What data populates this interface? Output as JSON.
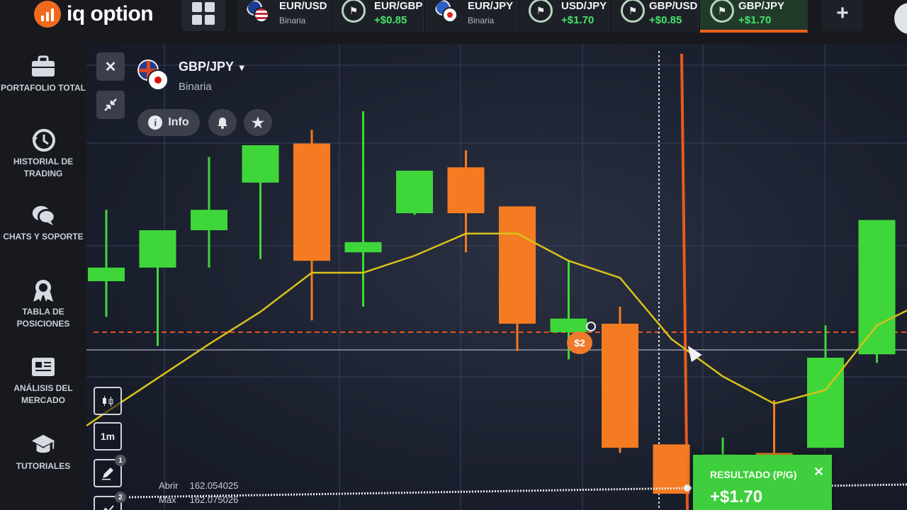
{
  "app": {
    "logo_text": "iq option"
  },
  "tabs": [
    {
      "name": "EUR/USD",
      "sub": "Binaria",
      "kind": "us"
    },
    {
      "name": "EUR/GBP",
      "sub": "+$0.85",
      "kind": "profit"
    },
    {
      "name": "EUR/JPY",
      "sub": "Binaria",
      "kind": "tp"
    },
    {
      "name": "USD/JPY",
      "sub": "+$1.70",
      "kind": "profit"
    },
    {
      "name": "GBP/USD",
      "sub": "+$0.85",
      "kind": "profit"
    },
    {
      "name": "GBP/JPY",
      "sub": "+$1.70",
      "kind": "profit-active"
    }
  ],
  "add_tab_label": "+",
  "sidebar": {
    "items": [
      {
        "label": "Portafolio total",
        "icon": "briefcase-icon"
      },
      {
        "label": "Historial de trading",
        "icon": "history-icon"
      },
      {
        "label": "Chats y soporte",
        "icon": "chat-icon"
      },
      {
        "label": "Tabla de posiciones",
        "icon": "medal-icon"
      },
      {
        "label": "Análisis del mercado",
        "icon": "newspaper-icon"
      },
      {
        "label": "Tutoriales",
        "icon": "graduation-cap-icon"
      }
    ]
  },
  "asset": {
    "name": "GBP/JPY",
    "type": "Binaria"
  },
  "controls": {
    "close": "✕",
    "info_label": "Info"
  },
  "tools": {
    "timeframe": "1m",
    "badge_1": "1",
    "badge_2": "2"
  },
  "ohlc": {
    "open_label": "Abrir",
    "open_value": "162.054025",
    "max_label": "Máx",
    "max_value": "162.075026"
  },
  "trade": {
    "amount": "$2"
  },
  "result": {
    "title": "RESULTADO (P/G)",
    "value": "+$1.70",
    "close": "✕"
  },
  "colors": {
    "up": "#3fd63a",
    "down": "#f47b22",
    "ma": "#d8c21a",
    "strike": "#e8541c",
    "accent": "#f06a1e"
  },
  "chart_data": {
    "type": "candlestick",
    "timeframe": "1m",
    "candles": [
      {
        "dir": "up",
        "o": 0.3,
        "c": 0.38,
        "h": 0.72,
        "l": 0.09
      },
      {
        "dir": "up",
        "o": 0.38,
        "c": 0.6,
        "h": 0.6,
        "l": -0.08
      },
      {
        "dir": "up",
        "o": 0.6,
        "c": 0.72,
        "h": 1.03,
        "l": 0.38
      },
      {
        "dir": "up",
        "o": 0.88,
        "c": 1.1,
        "h": 1.1,
        "l": 0.43
      },
      {
        "dir": "down",
        "o": 1.11,
        "c": 0.42,
        "h": 1.19,
        "l": 0.07
      },
      {
        "dir": "up",
        "o": 0.47,
        "c": 0.53,
        "h": 1.3,
        "l": 0.15
      },
      {
        "dir": "up",
        "o": 0.7,
        "c": 0.95,
        "h": 0.95,
        "l": 0.69
      },
      {
        "dir": "down",
        "o": 0.97,
        "c": 0.7,
        "h": 1.07,
        "l": 0.47
      },
      {
        "dir": "down",
        "o": 0.74,
        "c": 0.05,
        "h": 0.74,
        "l": -0.11
      },
      {
        "dir": "up",
        "o": 0.0,
        "c": 0.08,
        "h": 0.42,
        "l": -0.16
      },
      {
        "dir": "down",
        "o": 0.05,
        "c": -0.68,
        "h": 0.15,
        "l": -0.71
      },
      {
        "dir": "down",
        "o": -0.66,
        "c": -0.95,
        "h": -0.66,
        "l": -0.95
      },
      {
        "dir": "up",
        "o": -0.95,
        "c": -0.72,
        "h": -0.62,
        "l": -0.95
      },
      {
        "dir": "down",
        "o": -0.71,
        "c": -0.75,
        "h": -0.4,
        "l": -0.8
      },
      {
        "dir": "up",
        "o": -0.68,
        "c": -0.15,
        "h": 0.04,
        "l": -0.68
      },
      {
        "dir": "up",
        "o": -0.13,
        "c": 0.66,
        "h": 0.66,
        "l": -0.18
      },
      {
        "dir": "up",
        "o": 0.61,
        "c": 0.67,
        "h": 0.73,
        "l": 0.53
      }
    ],
    "moving_average": [
      -0.47,
      -0.27,
      -0.07,
      0.12,
      0.35,
      0.35,
      0.45,
      0.58,
      0.58,
      0.42,
      0.32,
      -0.04,
      -0.26,
      -0.42,
      -0.34,
      0.04,
      0.19
    ]
  }
}
